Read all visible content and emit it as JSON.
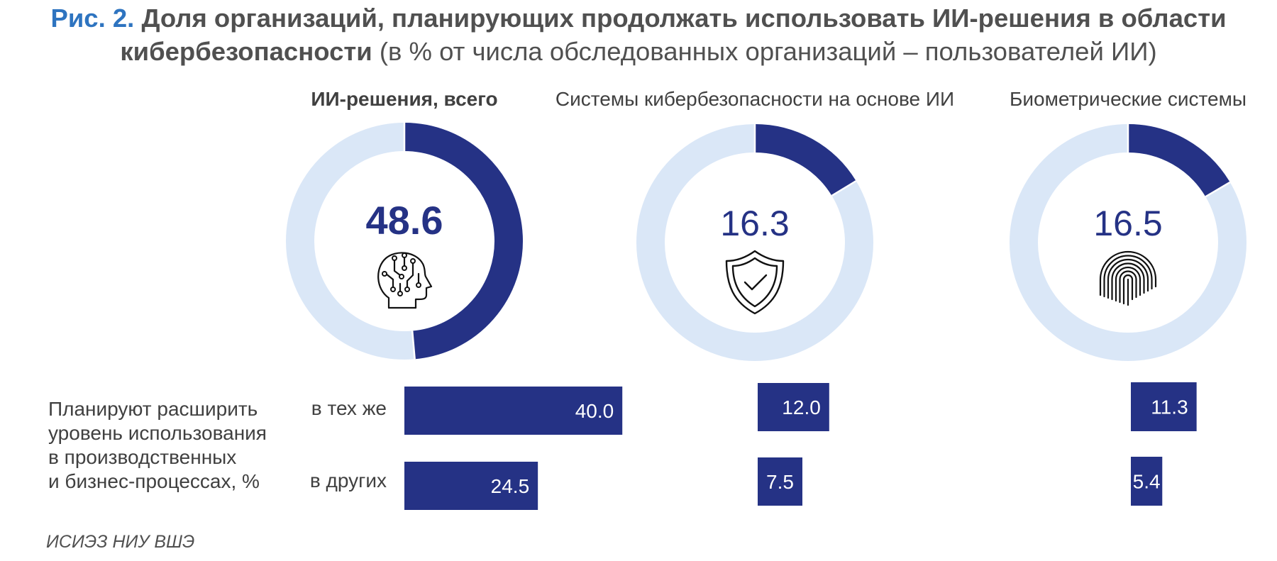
{
  "title": {
    "figure": "Рис. 2.",
    "bold": "Доля организаций, планирующих продолжать использовать ИИ-решения в области",
    "bold2": "кибербезопасности",
    "rest": " (в % от числа обследованных организаций – пользователей ИИ)"
  },
  "chart_data": {
    "type": "donut+bar",
    "panels": [
      {
        "title": "ИИ-решения, всего",
        "value": 48.6,
        "value_label": "48.6",
        "icon": "ai-head-icon",
        "bars": [
          {
            "label": "в тех же",
            "value": 40.0,
            "value_label": "40.0"
          },
          {
            "label": "в других",
            "value": 24.5,
            "value_label": "24.5"
          }
        ]
      },
      {
        "title": "Системы кибербезопасности на основе ИИ",
        "value": 16.3,
        "value_label": "16.3",
        "icon": "shield-check-icon",
        "bars": [
          {
            "value": 12.0,
            "value_label": "12.0"
          },
          {
            "value": 7.5,
            "value_label": "7.5"
          }
        ]
      },
      {
        "title": "Биометрические системы",
        "value": 16.5,
        "value_label": "16.5",
        "icon": "fingerprint-icon",
        "bars": [
          {
            "value": 11.3,
            "value_label": "11.3"
          },
          {
            "value": 5.4,
            "value_label": "5.4"
          }
        ]
      }
    ],
    "row_label_lines": [
      "Планируют расширить",
      "уровень использования",
      "в производственных",
      "и бизнес-процессах, %"
    ],
    "colors": {
      "primary": "#253285",
      "secondary": "#dae7f7",
      "text": "#404040"
    }
  },
  "source": "ИСИЭЗ НИУ ВШЭ"
}
